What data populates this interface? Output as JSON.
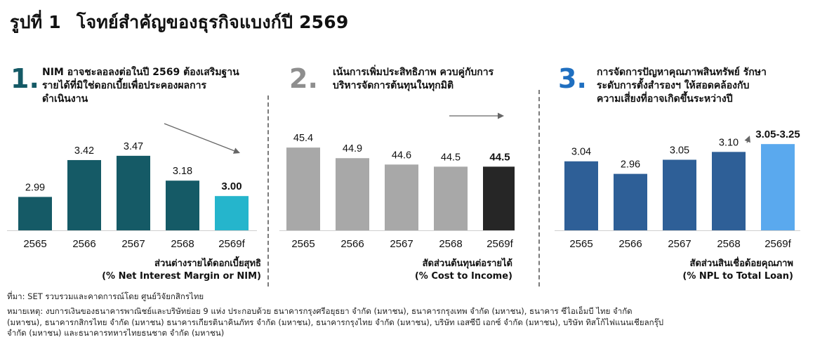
{
  "figure": {
    "title_label": "รูปที่ 1",
    "title_text": "โจทย์สำคัญของธุรกิจแบงก์ปี 2569"
  },
  "panels": [
    {
      "number": "1.",
      "number_color": "#155a66",
      "headline": [
        "NIM อาจชะลอลงต่อในปี 2569 ต้องเสริมฐาน",
        "รายได้ที่มิใช่ดอกเบี้ยเพื่อประคองผลการ",
        "ดำเนินงาน"
      ],
      "caption": [
        "ส่วนต่างรายได้ดอกเบี้ยสุทธิ",
        "(% Net Interest Margin or NIM)"
      ]
    },
    {
      "number": "2.",
      "number_color": "#8e8e8e",
      "headline": [
        "เน้นการเพิ่มประสิทธิภาพ ควบคู่กับการ",
        "บริหารจัดการต้นทุนในทุกมิติ"
      ],
      "caption": [
        "สัดส่วนต้นทุนต่อรายได้",
        "(% Cost to Income)"
      ]
    },
    {
      "number": "3.",
      "number_color": "#1f6fc0",
      "headline": [
        "การจัดการปัญหาคุณภาพสินทรัพย์ รักษา",
        "ระดับการตั้งสำรองฯ ให้สอดคล้องกับ",
        "ความเสี่ยงที่อาจเกิดขึ้นระหว่างปี"
      ],
      "caption": [
        "สัดส่วนสินเชื่อด้อยคุณภาพ",
        "(% NPL to Total Loan)"
      ]
    }
  ],
  "chart_data": [
    {
      "type": "bar",
      "title": "ส่วนต่างรายได้ดอกเบี้ยสุทธิ (% Net Interest Margin or NIM)",
      "categories": [
        "2565",
        "2566",
        "2567",
        "2568",
        "2569f"
      ],
      "values": [
        2.99,
        3.42,
        3.47,
        3.18,
        3.0
      ],
      "labels": [
        "2.99",
        "3.42",
        "3.47",
        "3.18",
        "3.00"
      ],
      "colors": [
        "#155a66",
        "#155a66",
        "#155a66",
        "#155a66",
        "#25b5cc"
      ],
      "highlight_last": true,
      "trend": "down",
      "ylim": [
        2.6,
        3.6
      ]
    },
    {
      "type": "bar",
      "title": "สัดส่วนต้นทุนต่อรายได้ (% Cost to Income)",
      "categories": [
        "2565",
        "2566",
        "2567",
        "2568",
        "2569f"
      ],
      "values": [
        45.4,
        44.9,
        44.6,
        44.5,
        44.5
      ],
      "labels": [
        "45.4",
        "44.9",
        "44.6",
        "44.5",
        "44.5"
      ],
      "colors": [
        "#a8a8a8",
        "#a8a8a8",
        "#a8a8a8",
        "#a8a8a8",
        "#262626"
      ],
      "highlight_last": true,
      "trend": "flat",
      "ylim": [
        41.5,
        46.0
      ]
    },
    {
      "type": "bar",
      "title": "สัดส่วนสินเชื่อด้อยคุณภาพ (% NPL to Total Loan)",
      "categories": [
        "2565",
        "2566",
        "2567",
        "2568",
        "2569f"
      ],
      "values": [
        3.04,
        2.96,
        3.05,
        3.1,
        3.15
      ],
      "labels": [
        "3.04",
        "2.96",
        "3.05",
        "3.10",
        "3.05-3.25"
      ],
      "colors": [
        "#2e5f97",
        "#2e5f97",
        "#2e5f97",
        "#2e5f97",
        "#5aa9ee"
      ],
      "highlight_last": true,
      "trend": "up",
      "ylim": [
        2.6,
        3.2
      ]
    }
  ],
  "footnotes": {
    "source": "ที่มา: SET รวบรวมและคาดการณ์โดย ศูนย์วิจัยกสิกรไทย",
    "note": [
      "หมายเหตุ: งบการเงินของธนาคารพาณิชย์และบริษัทย่อย 9 แห่ง ประกอบด้วย ธนาคารกรุงศรีอยุธยา จำกัด (มหาชน), ธนาคารกรุงเทพ จำกัด (มหาชน), ธนาคาร ซีไอเอ็มบี ไทย จำกัด",
      "(มหาชน), ธนาคารกสิกรไทย จำกัด (มหาชน) ธนาคารเกียรตินาคินภัทร จำกัด (มหาชน), ธนาคารกรุงไทย จำกัด (มหาชน), บริษัท เอสซีบี เอกซ์ จำกัด (มหาชน), บริษัท ทิสโก้ไฟแนนเชียลกรุ๊ป",
      "จำกัด (มหาชน) และธนาคารทหารไทยธนชาต จำกัด (มหาชน)"
    ]
  }
}
